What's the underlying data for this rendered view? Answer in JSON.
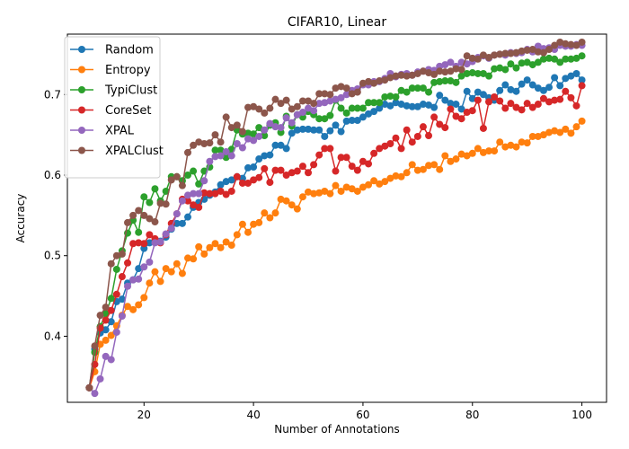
{
  "chart_data": {
    "type": "line",
    "title": "CIFAR10, Linear",
    "xlabel": "Number of Annotations",
    "ylabel": "Accuracy",
    "xlim": [
      6,
      104.5
    ],
    "ylim": [
      0.318,
      0.775
    ],
    "xticks": [
      20,
      40,
      60,
      80,
      100
    ],
    "yticks": [
      0.4,
      0.5,
      0.6,
      0.7
    ],
    "grid": false,
    "legend_position": "top-left",
    "x": [
      10,
      11,
      12,
      13,
      14,
      15,
      16,
      17,
      18,
      19,
      20,
      21,
      22,
      23,
      24,
      25,
      26,
      27,
      28,
      29,
      30,
      31,
      32,
      33,
      34,
      35,
      36,
      37,
      38,
      39,
      40,
      41,
      42,
      43,
      44,
      45,
      46,
      47,
      48,
      49,
      50,
      51,
      52,
      53,
      54,
      55,
      56,
      57,
      58,
      59,
      60,
      61,
      62,
      63,
      64,
      65,
      66,
      67,
      68,
      69,
      70,
      71,
      72,
      73,
      74,
      75,
      76,
      77,
      78,
      79,
      80,
      81,
      82,
      83,
      84,
      85,
      86,
      87,
      88,
      89,
      90,
      91,
      92,
      93,
      94,
      95,
      96,
      97,
      98,
      99,
      100
    ],
    "series": [
      {
        "name": "Random",
        "color": "#1f77b4",
        "values": [
          0.336,
          0.384,
          0.404,
          0.408,
          0.418,
          0.443,
          0.446,
          0.466,
          0.47,
          0.484,
          0.509,
          0.516,
          0.518,
          0.518,
          0.523,
          0.533,
          0.54,
          0.54,
          0.548,
          0.56,
          0.566,
          0.57,
          0.575,
          0.579,
          0.588,
          0.592,
          0.594,
          0.598,
          0.596,
          0.609,
          0.61,
          0.62,
          0.624,
          0.625,
          0.637,
          0.637,
          0.633,
          0.652,
          0.656,
          0.657,
          0.657,
          0.656,
          0.656,
          0.648,
          0.655,
          0.662,
          0.654,
          0.667,
          0.668,
          0.668,
          0.672,
          0.676,
          0.679,
          0.683,
          0.688,
          0.686,
          0.69,
          0.688,
          0.686,
          0.685,
          0.685,
          0.688,
          0.687,
          0.684,
          0.699,
          0.693,
          0.689,
          0.688,
          0.682,
          0.704,
          0.695,
          0.703,
          0.7,
          0.696,
          0.693,
          0.705,
          0.712,
          0.706,
          0.704,
          0.713,
          0.718,
          0.712,
          0.708,
          0.705,
          0.709,
          0.721,
          0.711,
          0.72,
          0.723,
          0.726,
          0.718
        ]
      },
      {
        "name": "Entropy",
        "color": "#ff7f0e",
        "values": [
          0.336,
          0.356,
          0.39,
          0.395,
          0.401,
          0.413,
          0.426,
          0.437,
          0.433,
          0.439,
          0.448,
          0.466,
          0.48,
          0.468,
          0.484,
          0.48,
          0.49,
          0.478,
          0.497,
          0.496,
          0.511,
          0.502,
          0.51,
          0.515,
          0.51,
          0.517,
          0.513,
          0.526,
          0.539,
          0.529,
          0.539,
          0.541,
          0.553,
          0.547,
          0.553,
          0.57,
          0.568,
          0.563,
          0.558,
          0.573,
          0.579,
          0.577,
          0.578,
          0.58,
          0.577,
          0.587,
          0.58,
          0.585,
          0.583,
          0.58,
          0.585,
          0.588,
          0.593,
          0.589,
          0.592,
          0.596,
          0.599,
          0.598,
          0.603,
          0.613,
          0.606,
          0.607,
          0.612,
          0.613,
          0.607,
          0.624,
          0.617,
          0.62,
          0.626,
          0.624,
          0.627,
          0.633,
          0.628,
          0.63,
          0.63,
          0.641,
          0.635,
          0.637,
          0.635,
          0.641,
          0.64,
          0.648,
          0.648,
          0.65,
          0.653,
          0.655,
          0.653,
          0.657,
          0.652,
          0.66,
          0.667
        ]
      },
      {
        "name": "TypiClust",
        "color": "#2ca02c",
        "values": [
          0.336,
          0.38,
          0.412,
          0.428,
          0.447,
          0.483,
          0.506,
          0.528,
          0.544,
          0.529,
          0.573,
          0.566,
          0.583,
          0.568,
          0.58,
          0.598,
          0.598,
          0.593,
          0.6,
          0.605,
          0.589,
          0.605,
          0.61,
          0.631,
          0.631,
          0.622,
          0.632,
          0.656,
          0.651,
          0.652,
          0.651,
          0.659,
          0.649,
          0.662,
          0.665,
          0.653,
          0.673,
          0.661,
          0.675,
          0.672,
          0.679,
          0.675,
          0.67,
          0.67,
          0.674,
          0.693,
          0.683,
          0.677,
          0.683,
          0.683,
          0.683,
          0.69,
          0.69,
          0.69,
          0.697,
          0.698,
          0.697,
          0.705,
          0.703,
          0.708,
          0.708,
          0.708,
          0.703,
          0.715,
          0.716,
          0.717,
          0.717,
          0.715,
          0.723,
          0.726,
          0.727,
          0.726,
          0.726,
          0.723,
          0.732,
          0.733,
          0.731,
          0.738,
          0.733,
          0.739,
          0.74,
          0.737,
          0.74,
          0.744,
          0.745,
          0.744,
          0.74,
          0.744,
          0.744,
          0.745,
          0.748
        ]
      },
      {
        "name": "CoreSet",
        "color": "#d62728",
        "values": [
          0.336,
          0.365,
          0.41,
          0.42,
          0.432,
          0.452,
          0.474,
          0.491,
          0.515,
          0.516,
          0.515,
          0.526,
          0.521,
          0.516,
          0.526,
          0.54,
          0.552,
          0.57,
          0.568,
          0.563,
          0.56,
          0.578,
          0.577,
          0.577,
          0.58,
          0.576,
          0.58,
          0.598,
          0.59,
          0.59,
          0.594,
          0.597,
          0.608,
          0.591,
          0.606,
          0.606,
          0.6,
          0.603,
          0.605,
          0.611,
          0.603,
          0.613,
          0.625,
          0.633,
          0.633,
          0.605,
          0.622,
          0.622,
          0.611,
          0.606,
          0.617,
          0.614,
          0.627,
          0.633,
          0.636,
          0.639,
          0.646,
          0.633,
          0.656,
          0.641,
          0.648,
          0.66,
          0.649,
          0.672,
          0.663,
          0.659,
          0.682,
          0.673,
          0.67,
          0.678,
          0.68,
          0.693,
          0.658,
          0.691,
          0.697,
          0.692,
          0.683,
          0.689,
          0.684,
          0.681,
          0.689,
          0.684,
          0.688,
          0.695,
          0.691,
          0.693,
          0.694,
          0.704,
          0.696,
          0.686,
          0.711
        ]
      },
      {
        "name": "XPAL",
        "color": "#9467bd",
        "values": [
          0.336,
          0.329,
          0.347,
          0.375,
          0.371,
          0.405,
          0.425,
          0.462,
          0.47,
          0.471,
          0.486,
          0.492,
          0.516,
          0.517,
          0.527,
          0.534,
          0.552,
          0.568,
          0.575,
          0.577,
          0.577,
          0.593,
          0.617,
          0.623,
          0.624,
          0.629,
          0.624,
          0.639,
          0.634,
          0.645,
          0.643,
          0.648,
          0.656,
          0.664,
          0.66,
          0.659,
          0.671,
          0.665,
          0.675,
          0.678,
          0.683,
          0.68,
          0.689,
          0.69,
          0.692,
          0.694,
          0.696,
          0.7,
          0.705,
          0.707,
          0.712,
          0.712,
          0.716,
          0.716,
          0.72,
          0.726,
          0.722,
          0.725,
          0.726,
          0.724,
          0.728,
          0.729,
          0.731,
          0.73,
          0.735,
          0.737,
          0.74,
          0.735,
          0.74,
          0.738,
          0.741,
          0.746,
          0.748,
          0.745,
          0.749,
          0.75,
          0.749,
          0.752,
          0.751,
          0.752,
          0.756,
          0.753,
          0.76,
          0.757,
          0.758,
          0.756,
          0.761,
          0.76,
          0.76,
          0.762,
          0.761
        ]
      },
      {
        "name": "XPALClust",
        "color": "#8c564b",
        "values": [
          0.336,
          0.388,
          0.426,
          0.436,
          0.49,
          0.5,
          0.502,
          0.541,
          0.55,
          0.556,
          0.55,
          0.546,
          0.542,
          0.565,
          0.564,
          0.594,
          0.598,
          0.587,
          0.628,
          0.637,
          0.641,
          0.639,
          0.64,
          0.65,
          0.641,
          0.672,
          0.659,
          0.662,
          0.654,
          0.684,
          0.685,
          0.682,
          0.677,
          0.683,
          0.694,
          0.689,
          0.693,
          0.682,
          0.685,
          0.692,
          0.692,
          0.689,
          0.701,
          0.701,
          0.7,
          0.708,
          0.71,
          0.708,
          0.701,
          0.703,
          0.714,
          0.716,
          0.714,
          0.717,
          0.718,
          0.721,
          0.723,
          0.724,
          0.723,
          0.724,
          0.726,
          0.729,
          0.727,
          0.725,
          0.729,
          0.728,
          0.729,
          0.732,
          0.731,
          0.748,
          0.745,
          0.744,
          0.749,
          0.746,
          0.749,
          0.75,
          0.751,
          0.751,
          0.752,
          0.754,
          0.755,
          0.756,
          0.753,
          0.752,
          0.756,
          0.761,
          0.765,
          0.763,
          0.762,
          0.761,
          0.765
        ]
      }
    ]
  }
}
